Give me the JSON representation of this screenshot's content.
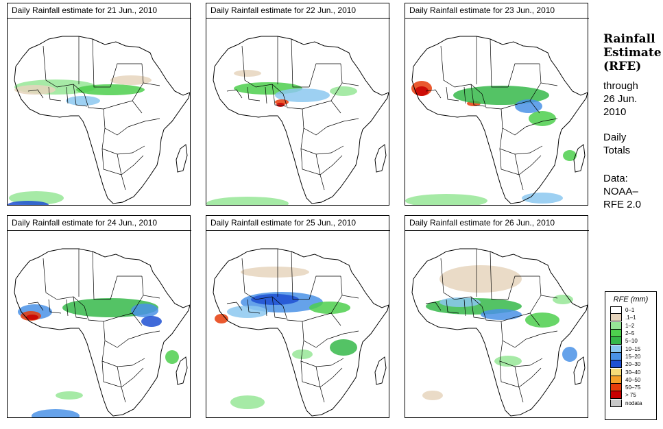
{
  "panels": [
    {
      "title": "Daily Rainfall estimate for  21 Jun., 2010"
    },
    {
      "title": "Daily Rainfall estimate for  22 Jun., 2010"
    },
    {
      "title": "Daily Rainfall estimate for  23 Jun., 2010"
    },
    {
      "title": "Daily Rainfall estimate for  24 Jun., 2010"
    },
    {
      "title": "Daily Rainfall estimate for  25 Jun., 2010"
    },
    {
      "title": "Daily Rainfall estimate for  26 Jun., 2010"
    }
  ],
  "sidebar": {
    "heading_line1": "Rainfall",
    "heading_line2": "Estimate",
    "heading_line3": "(RFE)",
    "through": "through",
    "date_line1": "26 Jun.",
    "date_line2": "2010",
    "totals_line1": "Daily",
    "totals_line2": "Totals",
    "data_line1": "Data:",
    "data_line2": "NOAA–",
    "data_line3": "RFE 2.0"
  },
  "legend": {
    "title": "RFE (mm)",
    "items": [
      {
        "label": "0–1",
        "color": "#ffffff"
      },
      {
        "label": ".1–1",
        "color": "#e6d5bd"
      },
      {
        "label": "1–2",
        "color": "#96e696"
      },
      {
        "label": "2–5",
        "color": "#4ecf4e"
      },
      {
        "label": "5–10",
        "color": "#36b84a"
      },
      {
        "label": "10–15",
        "color": "#8cc8f0"
      },
      {
        "label": "15–20",
        "color": "#4a92e6"
      },
      {
        "label": "20–30",
        "color": "#1e50d2"
      },
      {
        "label": "30–40",
        "color": "#f5dc78"
      },
      {
        "label": "40–50",
        "color": "#f5a028"
      },
      {
        "label": "50–75",
        "color": "#e63c0a"
      },
      {
        "label": "> 75",
        "color": "#c80000"
      },
      {
        "label": "nodata",
        "color": "#c8c8c8"
      }
    ]
  }
}
